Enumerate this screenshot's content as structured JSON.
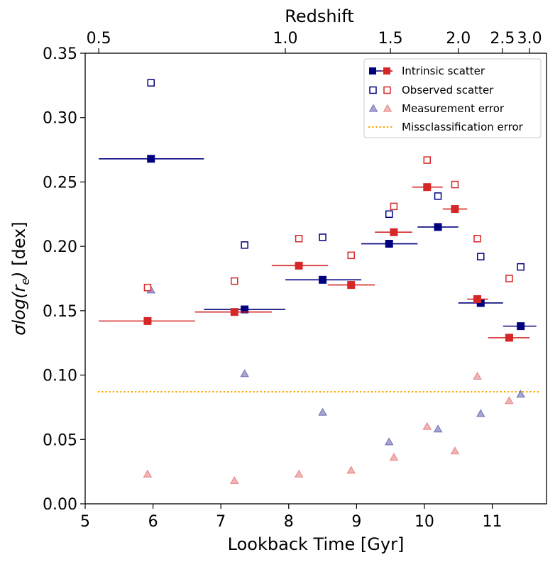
{
  "chart_data": {
    "type": "scatter",
    "xlabel": "Lookback Time [Gyr]",
    "ylabel": "σlog(r_e) [dex]",
    "top_xlabel": "Redshift",
    "xlim": [
      5,
      11.8
    ],
    "ylim": [
      0,
      0.35
    ],
    "x_ticks": [
      5,
      6,
      7,
      8,
      9,
      10,
      11
    ],
    "y_ticks": [
      0.0,
      0.05,
      0.1,
      0.15,
      0.2,
      0.25,
      0.3,
      0.35
    ],
    "y_tick_labels": [
      "0.00",
      "0.05",
      "0.10",
      "0.15",
      "0.20",
      "0.25",
      "0.30",
      "0.35"
    ],
    "top_ticks": [
      {
        "label": "0.5",
        "lookback": 5.2
      },
      {
        "label": "1.0",
        "lookback": 7.95
      },
      {
        "label": "1.5",
        "lookback": 9.5
      },
      {
        "label": "2.0",
        "lookback": 10.5
      },
      {
        "label": "2.5",
        "lookback": 11.15
      },
      {
        "label": "3.0",
        "lookback": 11.55
      }
    ],
    "colors": {
      "navy": "#00007f",
      "red": "#d62728",
      "orange": "#ffa500"
    },
    "legend": {
      "placement": "top-right",
      "entries": [
        {
          "label": "Intrinsic scatter",
          "style": "filled-square"
        },
        {
          "label": "Observed scatter",
          "style": "open-square"
        },
        {
          "label": "Measurement error",
          "style": "triangle"
        },
        {
          "label": "Missclassification error",
          "style": "dotted-line"
        }
      ]
    },
    "missclassification_error": 0.087,
    "series": [
      {
        "group": "navy",
        "intrinsic": [
          {
            "x": 5.97,
            "y": 0.268,
            "xerr": [
              5.2,
              6.75
            ]
          },
          {
            "x": 7.35,
            "y": 0.151,
            "xerr": [
              6.75,
              7.95
            ]
          },
          {
            "x": 8.5,
            "y": 0.174,
            "xerr": [
              7.95,
              9.07
            ]
          },
          {
            "x": 9.48,
            "y": 0.202,
            "xerr": [
              9.07,
              9.9
            ]
          },
          {
            "x": 10.2,
            "y": 0.215,
            "xerr": [
              9.9,
              10.5
            ]
          },
          {
            "x": 10.83,
            "y": 0.156,
            "xerr": [
              10.5,
              11.16
            ]
          },
          {
            "x": 11.42,
            "y": 0.138,
            "xerr": [
              11.16,
              11.65
            ]
          }
        ],
        "observed": [
          {
            "x": 5.97,
            "y": 0.327
          },
          {
            "x": 7.35,
            "y": 0.201
          },
          {
            "x": 8.5,
            "y": 0.207
          },
          {
            "x": 9.48,
            "y": 0.225
          },
          {
            "x": 10.2,
            "y": 0.239
          },
          {
            "x": 10.83,
            "y": 0.192
          },
          {
            "x": 11.42,
            "y": 0.184
          }
        ],
        "measurement": [
          {
            "x": 5.97,
            "y": 0.166
          },
          {
            "x": 7.35,
            "y": 0.101
          },
          {
            "x": 8.5,
            "y": 0.071
          },
          {
            "x": 9.48,
            "y": 0.048
          },
          {
            "x": 10.2,
            "y": 0.058
          },
          {
            "x": 10.83,
            "y": 0.07
          },
          {
            "x": 11.42,
            "y": 0.085
          }
        ]
      },
      {
        "group": "red",
        "intrinsic": [
          {
            "x": 5.92,
            "y": 0.142,
            "xerr": [
              5.2,
              6.62
            ]
          },
          {
            "x": 7.2,
            "y": 0.149,
            "xerr": [
              6.62,
              7.75
            ]
          },
          {
            "x": 8.15,
            "y": 0.185,
            "xerr": [
              7.75,
              8.58
            ]
          },
          {
            "x": 8.92,
            "y": 0.17,
            "xerr": [
              8.58,
              9.27
            ]
          },
          {
            "x": 9.55,
            "y": 0.211,
            "xerr": [
              9.27,
              9.82
            ]
          },
          {
            "x": 10.04,
            "y": 0.246,
            "xerr": [
              9.82,
              10.27
            ]
          },
          {
            "x": 10.45,
            "y": 0.229,
            "xerr": [
              10.27,
              10.63
            ]
          },
          {
            "x": 10.78,
            "y": 0.159,
            "xerr": [
              10.63,
              10.94
            ]
          },
          {
            "x": 11.25,
            "y": 0.129,
            "xerr": [
              10.94,
              11.55
            ]
          }
        ],
        "observed": [
          {
            "x": 5.92,
            "y": 0.168
          },
          {
            "x": 7.2,
            "y": 0.173
          },
          {
            "x": 8.15,
            "y": 0.206
          },
          {
            "x": 8.92,
            "y": 0.193
          },
          {
            "x": 9.55,
            "y": 0.231
          },
          {
            "x": 10.04,
            "y": 0.267
          },
          {
            "x": 10.45,
            "y": 0.248
          },
          {
            "x": 10.78,
            "y": 0.206
          },
          {
            "x": 11.25,
            "y": 0.175
          }
        ],
        "measurement": [
          {
            "x": 5.92,
            "y": 0.023
          },
          {
            "x": 7.2,
            "y": 0.018
          },
          {
            "x": 8.15,
            "y": 0.023
          },
          {
            "x": 8.92,
            "y": 0.026
          },
          {
            "x": 9.55,
            "y": 0.036
          },
          {
            "x": 10.04,
            "y": 0.06
          },
          {
            "x": 10.45,
            "y": 0.041
          },
          {
            "x": 10.78,
            "y": 0.099
          },
          {
            "x": 11.25,
            "y": 0.08
          }
        ]
      }
    ]
  }
}
